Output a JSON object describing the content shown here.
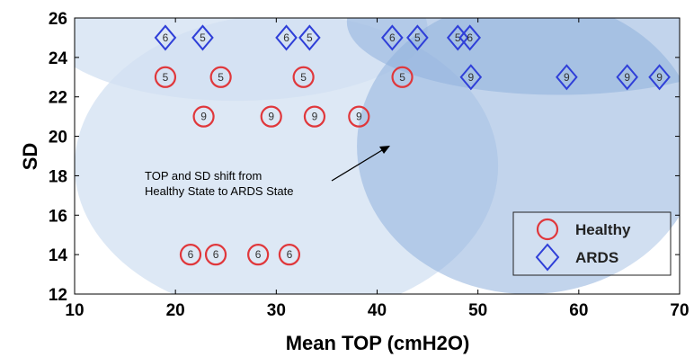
{
  "chart_data": {
    "type": "scatter",
    "xlabel": "Mean TOP (cmH2O)",
    "ylabel": "SD",
    "xlim": [
      10,
      70
    ],
    "ylim": [
      12,
      26
    ],
    "xticks": [
      10,
      20,
      30,
      40,
      50,
      60,
      70
    ],
    "yticks": [
      12,
      14,
      16,
      18,
      20,
      22,
      24,
      26
    ],
    "grid": false,
    "legend_position": "bottom-right",
    "annotation": {
      "lines": [
        "TOP and SD shift from",
        "Healthy State to ARDS State"
      ]
    },
    "regions": [
      {
        "series": "Healthy",
        "cx": 31,
        "cy": 18.5,
        "rx": 21,
        "ry": 7.7
      },
      {
        "series": "Healthy",
        "cx": 26,
        "cy": 25.5,
        "rx": 19,
        "ry": 3.7
      },
      {
        "series": "ARDS",
        "cx": 55,
        "cy": 19.5,
        "rx": 17,
        "ry": 7.5
      },
      {
        "series": "ARDS",
        "cx": 58,
        "cy": 25.8,
        "rx": 21,
        "ry": 3.7
      }
    ],
    "series": [
      {
        "name": "Healthy",
        "marker": "circle",
        "color": "#e0373b",
        "points": [
          {
            "x": 19.0,
            "y": 23,
            "label": "5"
          },
          {
            "x": 24.5,
            "y": 23,
            "label": "5"
          },
          {
            "x": 32.7,
            "y": 23,
            "label": "5"
          },
          {
            "x": 42.5,
            "y": 23,
            "label": "5"
          },
          {
            "x": 22.8,
            "y": 21,
            "label": "9"
          },
          {
            "x": 29.5,
            "y": 21,
            "label": "9"
          },
          {
            "x": 33.8,
            "y": 21,
            "label": "9"
          },
          {
            "x": 38.2,
            "y": 21,
            "label": "9"
          },
          {
            "x": 21.5,
            "y": 14,
            "label": "6"
          },
          {
            "x": 24.0,
            "y": 14,
            "label": "6"
          },
          {
            "x": 28.2,
            "y": 14,
            "label": "6"
          },
          {
            "x": 31.3,
            "y": 14,
            "label": "6"
          }
        ]
      },
      {
        "name": "ARDS",
        "marker": "diamond",
        "color": "#2f3fd8",
        "points": [
          {
            "x": 19.0,
            "y": 25,
            "label": "6"
          },
          {
            "x": 22.7,
            "y": 25,
            "label": "5"
          },
          {
            "x": 31.0,
            "y": 25,
            "label": "6"
          },
          {
            "x": 33.3,
            "y": 25,
            "label": "5"
          },
          {
            "x": 41.5,
            "y": 25,
            "label": "6"
          },
          {
            "x": 44.0,
            "y": 25,
            "label": "5"
          },
          {
            "x": 48.0,
            "y": 25,
            "label": "5"
          },
          {
            "x": 49.2,
            "y": 25,
            "label": "6"
          },
          {
            "x": 49.3,
            "y": 23,
            "label": "9"
          },
          {
            "x": 58.8,
            "y": 23,
            "label": "9"
          },
          {
            "x": 64.8,
            "y": 23,
            "label": "9"
          },
          {
            "x": 68.0,
            "y": 23,
            "label": "9"
          }
        ]
      }
    ]
  }
}
